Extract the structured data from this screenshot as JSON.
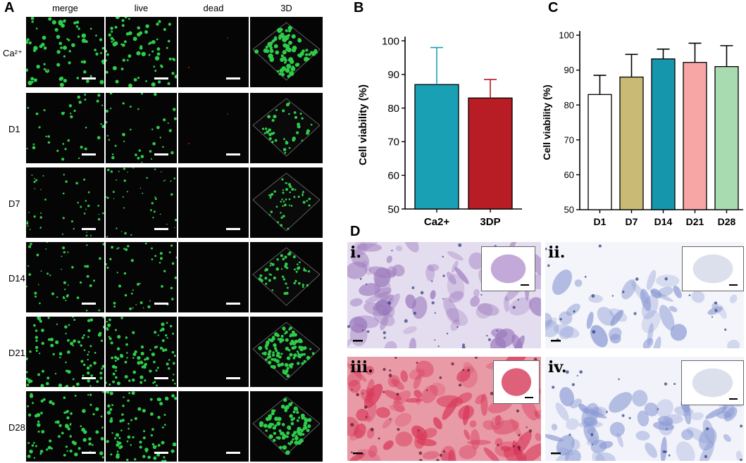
{
  "panels": {
    "A": {
      "letter": "A",
      "columns": [
        "merge",
        "live",
        "dead",
        "3D"
      ],
      "rows": [
        "Ca²⁺",
        "D1",
        "D7",
        "D14",
        "D21",
        "D28"
      ]
    },
    "B": {
      "letter": "B"
    },
    "C": {
      "letter": "C"
    },
    "D": {
      "letter": "D",
      "sub_labels": [
        "i.",
        "ii.",
        "iii.",
        "iv."
      ]
    }
  },
  "colors": {
    "live_green": "#2ecc4a",
    "dead_red": "#8a1010",
    "ca_teal": "#1aa0b4",
    "dp_red": "#b81c24",
    "d1_white": "#ffffff",
    "d7_olive": "#c9bb76",
    "d14_teal": "#1596ad",
    "d21_pink": "#f7a5a5",
    "d28_green": "#a9dbb0",
    "he_stain": "#9a78bc",
    "red_stain": "#d8385a",
    "blue_stain": "#8c9bd4"
  },
  "chart_data": [
    {
      "type": "bar",
      "panel": "B",
      "categories": [
        "Ca2+",
        "3DP"
      ],
      "values": [
        87,
        83
      ],
      "error": [
        11,
        5.5
      ],
      "ylabel": "Cell viability (%)",
      "ylim": [
        50,
        100
      ],
      "yticks": [
        50,
        60,
        70,
        80,
        90,
        100
      ],
      "colors": [
        "#1aa0b4",
        "#b81c24"
      ],
      "grid": false
    },
    {
      "type": "bar",
      "panel": "C",
      "categories": [
        "D1",
        "D7",
        "D14",
        "D21",
        "D28"
      ],
      "values": [
        83,
        88,
        93.2,
        92.2,
        91
      ],
      "error": [
        5.5,
        6.5,
        2.8,
        5.5,
        6
      ],
      "ylabel": "Cell viability (%)",
      "ylim": [
        50,
        100
      ],
      "yticks": [
        50,
        60,
        70,
        80,
        90,
        100
      ],
      "colors": [
        "#ffffff",
        "#c9bb76",
        "#1596ad",
        "#f7a5a5",
        "#a9dbb0"
      ],
      "grid": false
    }
  ]
}
